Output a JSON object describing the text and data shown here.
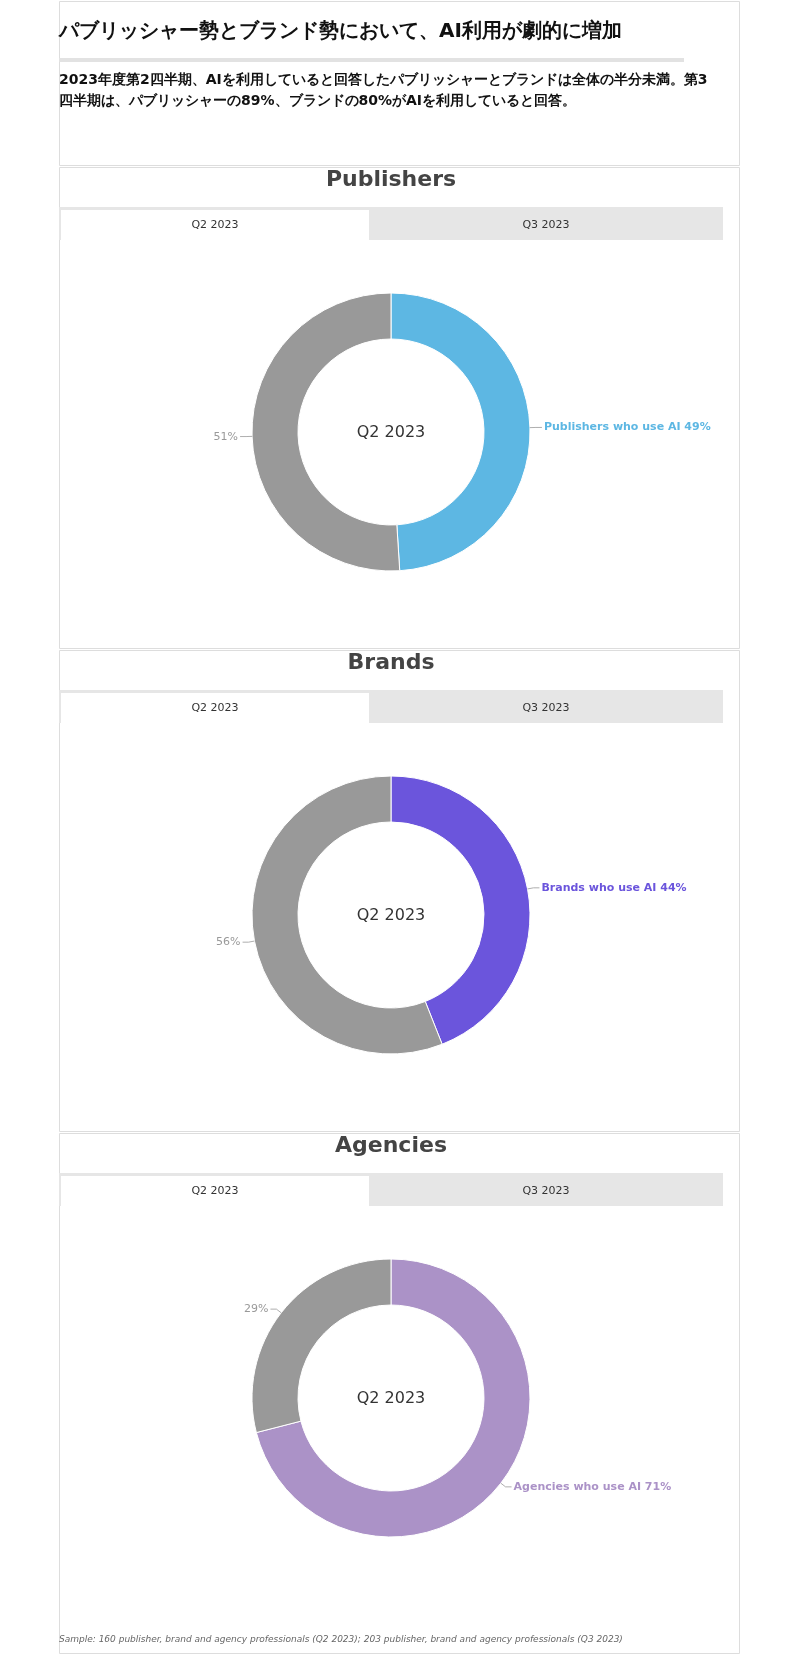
{
  "chart_data": [
    {
      "type": "other",
      "title": "パブリッシャー勢とブランド勢において、AI利用が劇的に増加",
      "subtitle": "2023年度第2四半期、AIを利用していると回答したパブリッシャーとブランドは全体の半分未満。第3四半期は、パブリッシャーの89%、ブランドの80%がAIを利用していると回答。"
    },
    {
      "type": "donut",
      "title": "Publishers",
      "categories": [
        "Publishers who use AI",
        null
      ],
      "values": [
        49,
        51
      ],
      "value_labels": [
        "49%",
        "51%"
      ],
      "colors": [
        "#5db7e3",
        "#999999"
      ],
      "annotations": [
        "Q2 2023",
        "Q3 2023",
        "Q2 2023"
      ]
    },
    {
      "type": "donut",
      "title": "Brands",
      "categories": [
        "Brands who use AI",
        null
      ],
      "values": [
        44,
        56
      ],
      "value_labels": [
        "44%",
        "56%"
      ],
      "colors": [
        "#6b55dc",
        "#999999"
      ],
      "annotations": [
        "Q2 2023",
        "Q3 2023",
        "Q2 2023"
      ]
    },
    {
      "type": "donut",
      "title": "Agencies",
      "categories": [
        "Agencies who use AI",
        null
      ],
      "values": [
        71,
        29
      ],
      "value_labels": [
        "71%",
        "29%"
      ],
      "colors": [
        "#ab92c7",
        "#999999"
      ],
      "annotations": [
        "Q2 2023",
        "Q3 2023",
        "Q2 2023",
        "Sample: 160 publisher, brand and agency professionals (Q2 2023); 203 publisher, brand and agency professionals (Q3 2023)"
      ]
    }
  ]
}
